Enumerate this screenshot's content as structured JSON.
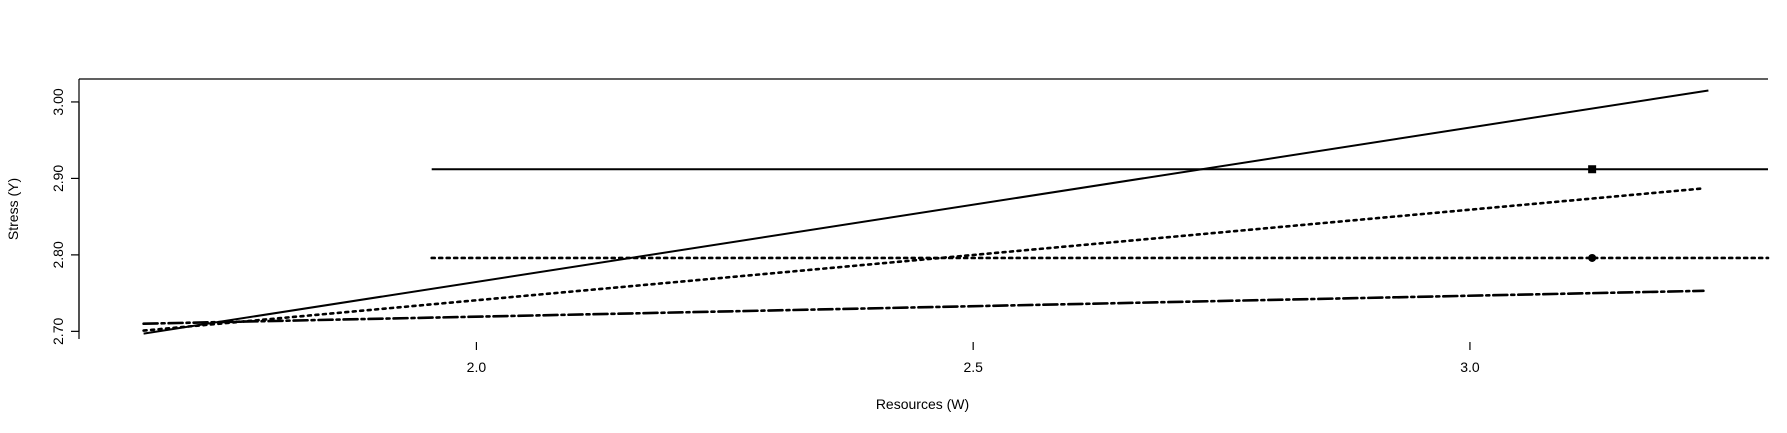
{
  "chart_data": {
    "type": "line",
    "title": "",
    "xlabel": "Resources (W)",
    "ylabel": "Stress (Y)",
    "xlim": [
      1.6,
      3.3
    ],
    "ylim": [
      2.69,
      3.03
    ],
    "xticks": [
      2.0,
      2.5,
      3.0
    ],
    "xtick_labels": [
      "2.0",
      "2.5",
      "3.0"
    ],
    "yticks": [
      2.7,
      2.8,
      2.9,
      3.0
    ],
    "ytick_labels": [
      "2.70",
      "2.80",
      "2.90",
      "3.00"
    ],
    "grid": false,
    "legend": "none",
    "series": [
      {
        "style": "solid",
        "x": [
          1.665,
          3.24
        ],
        "y": [
          2.697,
          3.015
        ]
      },
      {
        "style": "dotted",
        "x": [
          1.665,
          3.235
        ],
        "y": [
          2.701,
          2.887
        ]
      },
      {
        "style": "dotdash",
        "x": [
          1.665,
          3.235
        ],
        "y": [
          2.71,
          2.753
        ]
      }
    ],
    "reference_lines": [
      {
        "style": "solid",
        "y": 2.912,
        "x_start": 1.955,
        "x_end": 3.3,
        "marker": "square",
        "marker_x": 3.123
      },
      {
        "style": "dotted",
        "y": 2.796,
        "x_start": 1.955,
        "x_end": 3.3,
        "marker": "circle",
        "marker_x": 3.123
      }
    ]
  }
}
